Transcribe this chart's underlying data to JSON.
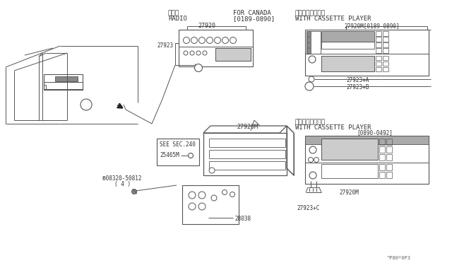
{
  "bg_color": "#ffffff",
  "footer": "^P80*0P3",
  "labels": {
    "radio_jp": "ラジオ",
    "radio_en": "RADIO",
    "for_canada": "FOR CANADA",
    "canada_date": "[0189-0890]",
    "cassette_jp": "カセット付ラジオ",
    "cassette_en": "WITH CASSETTE PLAYER",
    "cassette_jp2": "カセット付ラジオ",
    "cassette_en2": "WITH CASSETTE PLAYER",
    "cassette_date2": "[0890-0492]",
    "part_27920": "27920",
    "part_27920M_1": "27920M[0189-0890]",
    "part_27920M_2": "27920M",
    "part_27920M_3": "27920M",
    "part_27923": "27923",
    "part_27923A": "27923+A",
    "part_27923B": "27923+B",
    "part_27923C": "27923+C",
    "part_28038": "28038",
    "part_25465M": "25465M",
    "part_08320": "®08320-50812",
    "part_08320_qty": "( 4 )",
    "see_sec": "SEE SEC.240"
  },
  "lc": "#555555",
  "tc": "#333333",
  "gray1": "#aaaaaa",
  "gray2": "#cccccc",
  "gray3": "#888888"
}
